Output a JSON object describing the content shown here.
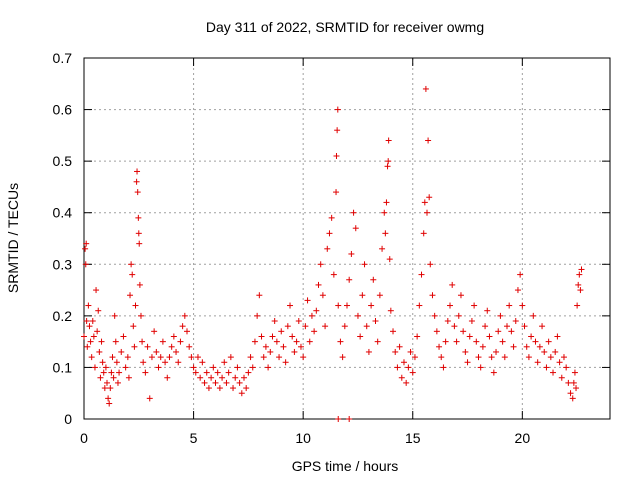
{
  "chart_data": {
    "type": "scatter",
    "title": "Day 311 of 2022, SRMTID for receiver owmg",
    "xlabel": "GPS time / hours",
    "ylabel": "SRMTID / TECUs",
    "xlim": [
      0,
      24
    ],
    "ylim": [
      0,
      0.7
    ],
    "xticks": [
      0,
      5,
      10,
      15,
      20
    ],
    "yticks": [
      0,
      0.1,
      0.2,
      0.3,
      0.4,
      0.5,
      0.6,
      0.7
    ],
    "xtick_labels": [
      "0",
      "5",
      "10",
      "15",
      "20"
    ],
    "ytick_labels": [
      "0",
      "0.1",
      "0.2",
      "0.3",
      "0.4",
      "0.5",
      "0.6",
      "0.7"
    ],
    "grid": true,
    "marker": "+",
    "color": "#e00000",
    "series": [
      {
        "name": "SRMTID",
        "points": [
          [
            0.0,
            0.16
          ],
          [
            0.05,
            0.33
          ],
          [
            0.08,
            0.3
          ],
          [
            0.1,
            0.34
          ],
          [
            0.12,
            0.19
          ],
          [
            0.15,
            0.14
          ],
          [
            0.2,
            0.22
          ],
          [
            0.25,
            0.18
          ],
          [
            0.3,
            0.15
          ],
          [
            0.35,
            0.12
          ],
          [
            0.4,
            0.19
          ],
          [
            0.45,
            0.16
          ],
          [
            0.5,
            0.1
          ],
          [
            0.55,
            0.25
          ],
          [
            0.6,
            0.17
          ],
          [
            0.65,
            0.21
          ],
          [
            0.7,
            0.13
          ],
          [
            0.75,
            0.08
          ],
          [
            0.8,
            0.15
          ],
          [
            0.85,
            0.11
          ],
          [
            0.9,
            0.09
          ],
          [
            0.95,
            0.06
          ],
          [
            1.0,
            0.1
          ],
          [
            1.05,
            0.07
          ],
          [
            1.1,
            0.04
          ],
          [
            1.15,
            0.03
          ],
          [
            1.2,
            0.06
          ],
          [
            1.25,
            0.09
          ],
          [
            1.3,
            0.12
          ],
          [
            1.35,
            0.08
          ],
          [
            1.4,
            0.2
          ],
          [
            1.45,
            0.15
          ],
          [
            1.5,
            0.11
          ],
          [
            1.55,
            0.07
          ],
          [
            1.6,
            0.09
          ],
          [
            1.7,
            0.13
          ],
          [
            1.8,
            0.16
          ],
          [
            1.9,
            0.1
          ],
          [
            2.0,
            0.12
          ],
          [
            2.05,
            0.08
          ],
          [
            2.1,
            0.24
          ],
          [
            2.15,
            0.3
          ],
          [
            2.2,
            0.28
          ],
          [
            2.25,
            0.18
          ],
          [
            2.3,
            0.14
          ],
          [
            2.35,
            0.22
          ],
          [
            2.4,
            0.46
          ],
          [
            2.42,
            0.48
          ],
          [
            2.45,
            0.44
          ],
          [
            2.48,
            0.39
          ],
          [
            2.5,
            0.36
          ],
          [
            2.52,
            0.34
          ],
          [
            2.55,
            0.26
          ],
          [
            2.6,
            0.2
          ],
          [
            2.65,
            0.15
          ],
          [
            2.7,
            0.11
          ],
          [
            2.8,
            0.09
          ],
          [
            2.9,
            0.14
          ],
          [
            3.0,
            0.04
          ],
          [
            3.1,
            0.12
          ],
          [
            3.2,
            0.17
          ],
          [
            3.3,
            0.13
          ],
          [
            3.4,
            0.1
          ],
          [
            3.5,
            0.12
          ],
          [
            3.6,
            0.15
          ],
          [
            3.7,
            0.11
          ],
          [
            3.8,
            0.08
          ],
          [
            3.9,
            0.12
          ],
          [
            4.0,
            0.14
          ],
          [
            4.1,
            0.16
          ],
          [
            4.2,
            0.13
          ],
          [
            4.3,
            0.11
          ],
          [
            4.4,
            0.15
          ],
          [
            4.5,
            0.18
          ],
          [
            4.6,
            0.2
          ],
          [
            4.7,
            0.17
          ],
          [
            4.8,
            0.14
          ],
          [
            4.9,
            0.12
          ],
          [
            5.0,
            0.1
          ],
          [
            5.1,
            0.09
          ],
          [
            5.2,
            0.12
          ],
          [
            5.3,
            0.08
          ],
          [
            5.4,
            0.11
          ],
          [
            5.5,
            0.07
          ],
          [
            5.6,
            0.09
          ],
          [
            5.7,
            0.06
          ],
          [
            5.8,
            0.08
          ],
          [
            5.9,
            0.1
          ],
          [
            6.0,
            0.07
          ],
          [
            6.1,
            0.09
          ],
          [
            6.2,
            0.06
          ],
          [
            6.3,
            0.08
          ],
          [
            6.4,
            0.11
          ],
          [
            6.5,
            0.07
          ],
          [
            6.6,
            0.09
          ],
          [
            6.7,
            0.12
          ],
          [
            6.8,
            0.06
          ],
          [
            6.9,
            0.08
          ],
          [
            7.0,
            0.1
          ],
          [
            7.1,
            0.07
          ],
          [
            7.2,
            0.05
          ],
          [
            7.3,
            0.08
          ],
          [
            7.4,
            0.06
          ],
          [
            7.5,
            0.09
          ],
          [
            7.6,
            0.12
          ],
          [
            7.7,
            0.1
          ],
          [
            7.8,
            0.15
          ],
          [
            7.9,
            0.2
          ],
          [
            8.0,
            0.24
          ],
          [
            8.1,
            0.16
          ],
          [
            8.2,
            0.12
          ],
          [
            8.3,
            0.14
          ],
          [
            8.4,
            0.1
          ],
          [
            8.5,
            0.13
          ],
          [
            8.6,
            0.16
          ],
          [
            8.7,
            0.19
          ],
          [
            8.8,
            0.15
          ],
          [
            8.9,
            0.12
          ],
          [
            9.0,
            0.17
          ],
          [
            9.1,
            0.14
          ],
          [
            9.2,
            0.11
          ],
          [
            9.3,
            0.18
          ],
          [
            9.4,
            0.22
          ],
          [
            9.5,
            0.16
          ],
          [
            9.6,
            0.13
          ],
          [
            9.7,
            0.15
          ],
          [
            9.8,
            0.19
          ],
          [
            9.9,
            0.14
          ],
          [
            10.0,
            0.12
          ],
          [
            10.1,
            0.18
          ],
          [
            10.2,
            0.23
          ],
          [
            10.3,
            0.15
          ],
          [
            10.4,
            0.2
          ],
          [
            10.5,
            0.17
          ],
          [
            10.6,
            0.21
          ],
          [
            10.7,
            0.26
          ],
          [
            10.8,
            0.3
          ],
          [
            10.9,
            0.24
          ],
          [
            11.0,
            0.18
          ],
          [
            11.1,
            0.33
          ],
          [
            11.2,
            0.36
          ],
          [
            11.3,
            0.39
          ],
          [
            11.4,
            0.28
          ],
          [
            11.5,
            0.44
          ],
          [
            11.52,
            0.51
          ],
          [
            11.55,
            0.56
          ],
          [
            11.58,
            0.6
          ],
          [
            11.6,
            0.22
          ],
          [
            11.7,
            0.15
          ],
          [
            11.8,
            0.12
          ],
          [
            11.9,
            0.18
          ],
          [
            12.0,
            0.22
          ],
          [
            12.1,
            0.27
          ],
          [
            12.2,
            0.32
          ],
          [
            12.3,
            0.4
          ],
          [
            12.4,
            0.37
          ],
          [
            12.5,
            0.2
          ],
          [
            12.6,
            0.16
          ],
          [
            12.7,
            0.24
          ],
          [
            12.8,
            0.3
          ],
          [
            12.9,
            0.18
          ],
          [
            13.0,
            0.13
          ],
          [
            13.1,
            0.22
          ],
          [
            13.2,
            0.27
          ],
          [
            13.3,
            0.19
          ],
          [
            13.4,
            0.15
          ],
          [
            13.5,
            0.24
          ],
          [
            13.6,
            0.33
          ],
          [
            13.7,
            0.4
          ],
          [
            13.75,
            0.36
          ],
          [
            13.8,
            0.42
          ],
          [
            13.85,
            0.49
          ],
          [
            13.88,
            0.5
          ],
          [
            13.9,
            0.54
          ],
          [
            13.95,
            0.31
          ],
          [
            14.0,
            0.21
          ],
          [
            14.1,
            0.17
          ],
          [
            14.2,
            0.13
          ],
          [
            14.3,
            0.1
          ],
          [
            14.4,
            0.14
          ],
          [
            14.5,
            0.08
          ],
          [
            14.6,
            0.11
          ],
          [
            14.7,
            0.07
          ],
          [
            14.8,
            0.1
          ],
          [
            14.9,
            0.13
          ],
          [
            15.0,
            0.09
          ],
          [
            15.1,
            0.12
          ],
          [
            15.2,
            0.16
          ],
          [
            15.3,
            0.22
          ],
          [
            15.4,
            0.28
          ],
          [
            15.5,
            0.36
          ],
          [
            15.55,
            0.42
          ],
          [
            15.6,
            0.64
          ],
          [
            15.65,
            0.4
          ],
          [
            15.7,
            0.54
          ],
          [
            15.75,
            0.43
          ],
          [
            15.8,
            0.3
          ],
          [
            15.9,
            0.24
          ],
          [
            16.0,
            0.2
          ],
          [
            16.1,
            0.17
          ],
          [
            16.2,
            0.14
          ],
          [
            16.3,
            0.12
          ],
          [
            16.4,
            0.1
          ],
          [
            16.5,
            0.15
          ],
          [
            16.6,
            0.19
          ],
          [
            16.7,
            0.22
          ],
          [
            16.8,
            0.26
          ],
          [
            16.9,
            0.18
          ],
          [
            17.0,
            0.15
          ],
          [
            17.1,
            0.2
          ],
          [
            17.2,
            0.24
          ],
          [
            17.3,
            0.17
          ],
          [
            17.4,
            0.13
          ],
          [
            17.5,
            0.11
          ],
          [
            17.6,
            0.16
          ],
          [
            17.7,
            0.19
          ],
          [
            17.8,
            0.22
          ],
          [
            17.9,
            0.15
          ],
          [
            18.0,
            0.12
          ],
          [
            18.1,
            0.1
          ],
          [
            18.2,
            0.14
          ],
          [
            18.3,
            0.18
          ],
          [
            18.4,
            0.21
          ],
          [
            18.5,
            0.16
          ],
          [
            18.6,
            0.12
          ],
          [
            18.7,
            0.09
          ],
          [
            18.8,
            0.13
          ],
          [
            18.9,
            0.17
          ],
          [
            19.0,
            0.2
          ],
          [
            19.1,
            0.15
          ],
          [
            19.2,
            0.12
          ],
          [
            19.3,
            0.18
          ],
          [
            19.4,
            0.22
          ],
          [
            19.5,
            0.17
          ],
          [
            19.6,
            0.14
          ],
          [
            19.7,
            0.19
          ],
          [
            19.8,
            0.25
          ],
          [
            19.9,
            0.28
          ],
          [
            20.0,
            0.22
          ],
          [
            20.1,
            0.18
          ],
          [
            20.2,
            0.14
          ],
          [
            20.3,
            0.12
          ],
          [
            20.4,
            0.16
          ],
          [
            20.5,
            0.2
          ],
          [
            20.6,
            0.15
          ],
          [
            20.7,
            0.11
          ],
          [
            20.8,
            0.14
          ],
          [
            20.9,
            0.18
          ],
          [
            21.0,
            0.13
          ],
          [
            21.1,
            0.1
          ],
          [
            21.2,
            0.15
          ],
          [
            21.3,
            0.12
          ],
          [
            21.4,
            0.09
          ],
          [
            21.5,
            0.13
          ],
          [
            21.6,
            0.16
          ],
          [
            21.7,
            0.11
          ],
          [
            21.8,
            0.08
          ],
          [
            21.9,
            0.12
          ],
          [
            22.0,
            0.1
          ],
          [
            22.1,
            0.07
          ],
          [
            22.2,
            0.05
          ],
          [
            22.3,
            0.04
          ],
          [
            22.35,
            0.07
          ],
          [
            22.4,
            0.09
          ],
          [
            22.45,
            0.06
          ],
          [
            22.5,
            0.22
          ],
          [
            22.55,
            0.26
          ],
          [
            22.6,
            0.28
          ],
          [
            22.65,
            0.25
          ],
          [
            22.7,
            0.29
          ],
          [
            11.6,
            0.0
          ],
          [
            12.1,
            0.0
          ]
        ]
      }
    ]
  }
}
